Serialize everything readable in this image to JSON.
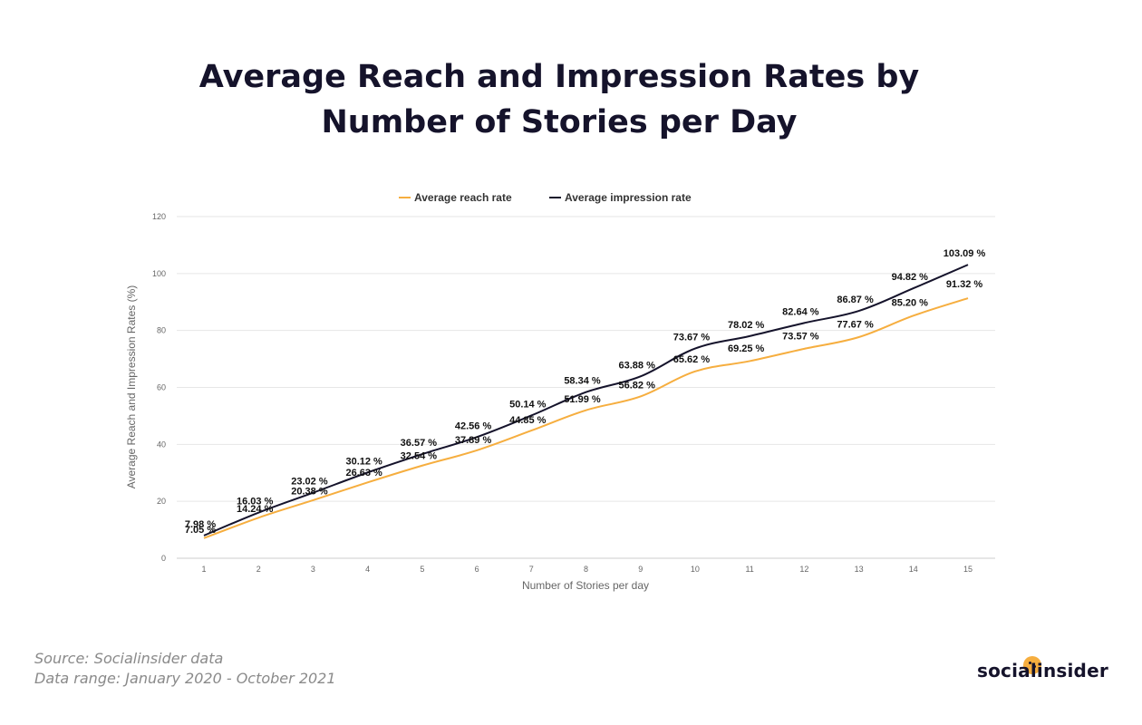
{
  "title_line1": "Average Reach and Impression Rates by",
  "title_line2": "Number of Stories per Day",
  "source": "Source: Socialinsider data",
  "range": "Data range: January 2020 - October 2021",
  "brand": "socialinsider",
  "colors": {
    "reach": "#f6ae3f",
    "impression": "#15132b",
    "grid": "#e6e6e6",
    "axis_text": "#666666"
  },
  "chart_data": {
    "type": "line",
    "xlabel": "Number of Stories per day",
    "ylabel": "Average Reach and Impression Rates (%)",
    "ylim": [
      0,
      120
    ],
    "yticks": [
      0,
      20,
      40,
      60,
      80,
      100,
      120
    ],
    "x": [
      1,
      2,
      3,
      4,
      5,
      6,
      7,
      8,
      9,
      10,
      11,
      12,
      13,
      14,
      15
    ],
    "legend_position": "top",
    "grid": true,
    "series": [
      {
        "name": "Average reach rate",
        "values": [
          7.05,
          14.24,
          20.38,
          26.63,
          32.54,
          37.89,
          44.85,
          51.99,
          56.82,
          65.62,
          69.25,
          73.57,
          77.67,
          85.2,
          91.32
        ],
        "labels": [
          "7.05 %",
          "14.24 %",
          "20.38 %",
          "26.63 %",
          "32.54 %",
          "37.89 %",
          "44.85 %",
          "51.99 %",
          "56.82 %",
          "65.62 %",
          "69.25 %",
          "73.57 %",
          "77.67 %",
          "85.20 %",
          "91.32 %"
        ]
      },
      {
        "name": "Average impression rate",
        "values": [
          7.98,
          16.03,
          23.02,
          30.12,
          36.57,
          42.56,
          50.14,
          58.34,
          63.88,
          73.67,
          78.02,
          82.64,
          86.87,
          94.82,
          103.09
        ],
        "labels": [
          "7.98 %",
          "16.03 %",
          "23.02 %",
          "30.12 %",
          "36.57 %",
          "42.56 %",
          "50.14 %",
          "58.34 %",
          "63.88 %",
          "73.67 %",
          "78.02 %",
          "82.64 %",
          "86.87 %",
          "94.82 %",
          "103.09 %"
        ]
      }
    ]
  }
}
